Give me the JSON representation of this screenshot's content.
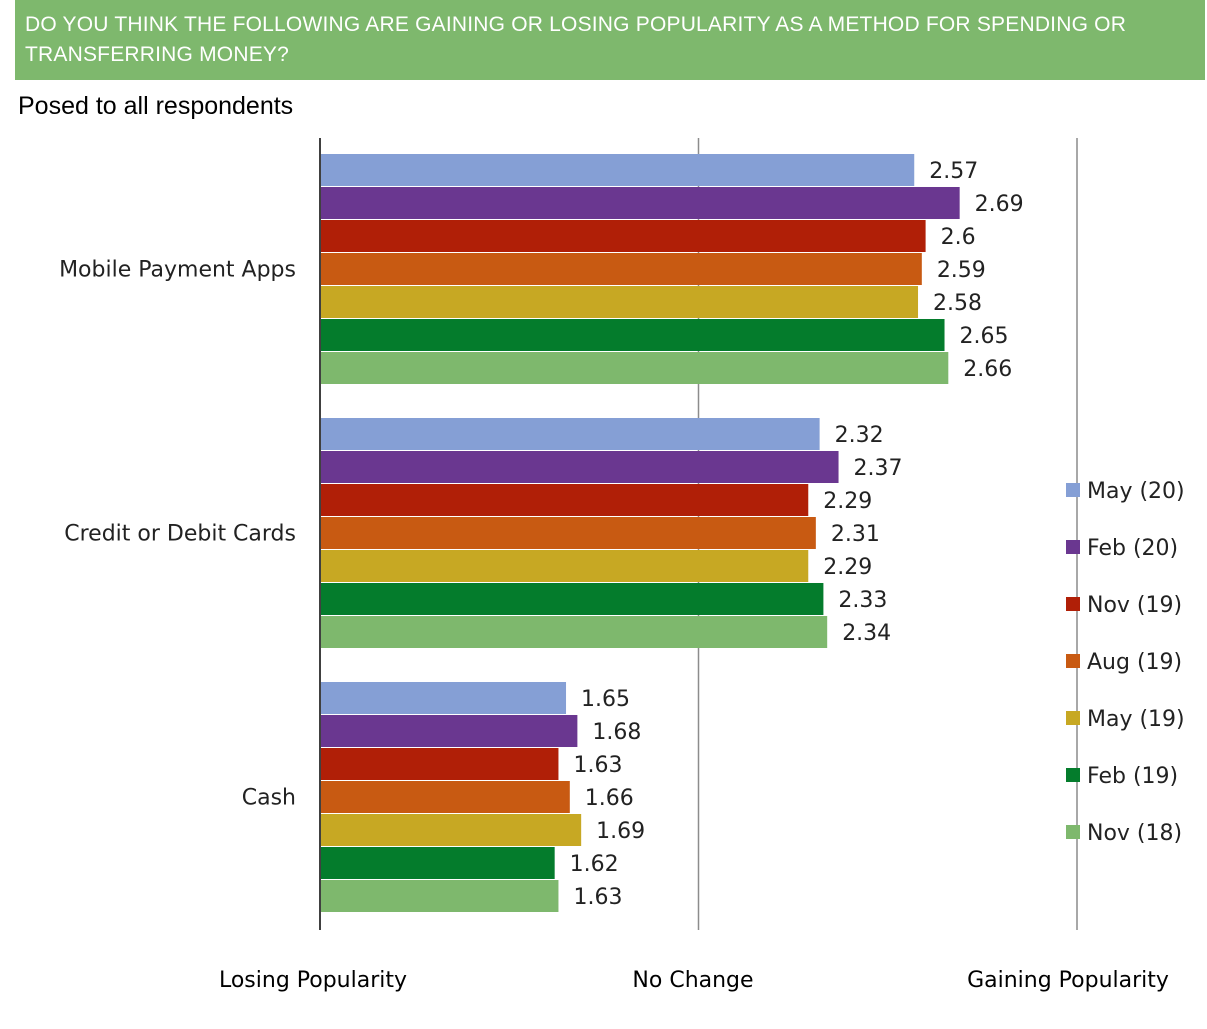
{
  "header": {
    "question": "DO YOU THINK THE FOLLOWING ARE GAINING OR LOSING POPULARITY AS A METHOD FOR SPENDING OR TRANSFERRING MONEY?",
    "subtitle": "Posed to all respondents"
  },
  "chart_data": {
    "type": "bar",
    "orientation": "horizontal",
    "title": "DO YOU THINK THE FOLLOWING ARE GAINING OR LOSING POPULARITY AS A METHOD FOR SPENDING OR TRANSFERRING MONEY?",
    "subtitle": "Posed to all respondents",
    "categories": [
      "Mobile Payment Apps",
      "Credit or Debit Cards",
      "Cash"
    ],
    "series": [
      {
        "name": "May (20)",
        "color": "#859fd5",
        "values": [
          2.57,
          2.32,
          1.65
        ]
      },
      {
        "name": "Feb (20)",
        "color": "#6a3790",
        "values": [
          2.69,
          2.37,
          1.68
        ]
      },
      {
        "name": "Nov (19)",
        "color": "#b01f07",
        "values": [
          2.6,
          2.29,
          1.63
        ]
      },
      {
        "name": "Aug (19)",
        "color": "#c85a12",
        "values": [
          2.59,
          2.31,
          1.66
        ]
      },
      {
        "name": "May (19)",
        "color": "#c7a823",
        "values": [
          2.58,
          2.29,
          1.69
        ]
      },
      {
        "name": "Feb (19)",
        "color": "#047c2c",
        "values": [
          2.65,
          2.33,
          1.62
        ]
      },
      {
        "name": "Nov (18)",
        "color": "#7eb86d",
        "values": [
          2.66,
          2.34,
          1.63
        ]
      }
    ],
    "xlim": [
      1,
      3
    ],
    "x_tick_values": [
      1,
      2,
      3
    ],
    "x_tick_labels": [
      "Losing Popularity",
      "No Change",
      "Gaining Popularity"
    ],
    "grid": true,
    "legend": "right"
  }
}
